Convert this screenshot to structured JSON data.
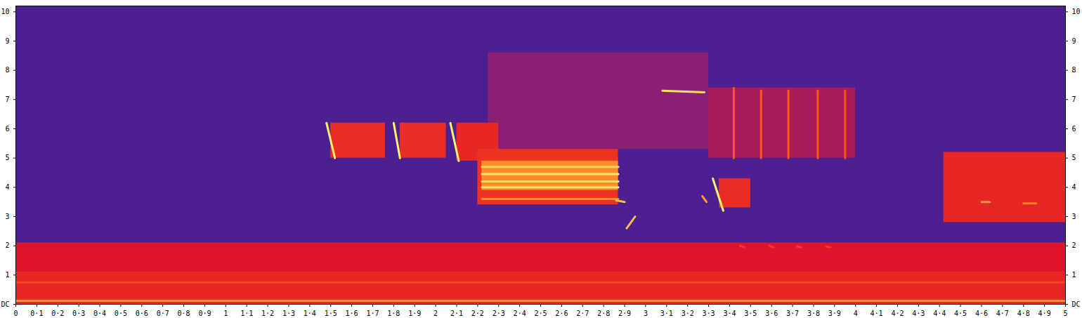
{
  "chart_data": {
    "type": "spectrogram",
    "xlim": [
      0,
      5
    ],
    "ylim": [
      0,
      10.2
    ],
    "zlim": [
      0,
      1
    ],
    "xticks": [
      0,
      {
        "value": 0.1,
        "label": "0·1"
      },
      {
        "value": 0.2,
        "label": "0·2"
      },
      {
        "value": 0.3,
        "label": "0·3"
      },
      {
        "value": 0.4,
        "label": "0·4"
      },
      {
        "value": 0.5,
        "label": "0·5"
      },
      {
        "value": 0.6,
        "label": "0·6"
      },
      {
        "value": 0.7,
        "label": "0·7"
      },
      {
        "value": 0.8,
        "label": "0·8"
      },
      {
        "value": 0.9,
        "label": "0·9"
      },
      1,
      {
        "value": 1.1,
        "label": "1·1"
      },
      {
        "value": 1.2,
        "label": "1·2"
      },
      {
        "value": 1.3,
        "label": "1·3"
      },
      {
        "value": 1.4,
        "label": "1·4"
      },
      {
        "value": 1.5,
        "label": "1·5"
      },
      {
        "value": 1.6,
        "label": "1·6"
      },
      {
        "value": 1.7,
        "label": "1·7"
      },
      {
        "value": 1.8,
        "label": "1·8"
      },
      {
        "value": 1.9,
        "label": "1·9"
      },
      2,
      {
        "value": 2.1,
        "label": "2·1"
      },
      {
        "value": 2.2,
        "label": "2·2"
      },
      {
        "value": 2.3,
        "label": "2·3"
      },
      {
        "value": 2.4,
        "label": "2·4"
      },
      {
        "value": 2.5,
        "label": "2·5"
      },
      {
        "value": 2.6,
        "label": "2·6"
      },
      {
        "value": 2.7,
        "label": "2·7"
      },
      {
        "value": 2.8,
        "label": "2·8"
      },
      {
        "value": 2.9,
        "label": "2·9"
      },
      3,
      {
        "value": 3.1,
        "label": "3·1"
      },
      {
        "value": 3.2,
        "label": "3·2"
      },
      {
        "value": 3.3,
        "label": "3·3"
      },
      {
        "value": 3.4,
        "label": "3·4"
      },
      {
        "value": 3.5,
        "label": "3·5"
      },
      {
        "value": 3.6,
        "label": "3·6"
      },
      {
        "value": 3.7,
        "label": "3·7"
      },
      {
        "value": 3.8,
        "label": "3·8"
      },
      {
        "value": 3.9,
        "label": "3·9"
      },
      4,
      {
        "value": 4.1,
        "label": "4·1"
      },
      {
        "value": 4.2,
        "label": "4·2"
      },
      {
        "value": 4.3,
        "label": "4·3"
      },
      {
        "value": 4.4,
        "label": "4·4"
      },
      {
        "value": 4.5,
        "label": "4·5"
      },
      {
        "value": 4.6,
        "label": "4·6"
      },
      {
        "value": 4.7,
        "label": "4·7"
      },
      {
        "value": 4.8,
        "label": "4·8"
      },
      {
        "value": 4.9,
        "label": "4·9"
      },
      5
    ],
    "yticks": [
      {
        "value": 0,
        "label": "DC"
      },
      1,
      2,
      3,
      4,
      5,
      6,
      7,
      8,
      9,
      10
    ],
    "areas": [
      {
        "x1": 0,
        "x2": 5,
        "y1": 0,
        "y2": 10.2,
        "intensity": 0.2
      },
      {
        "x1": 0,
        "x2": 5,
        "y1": 0,
        "y2": 2.1,
        "intensity": 0.5
      },
      {
        "x1": 0,
        "x2": 5,
        "y1": 0,
        "y2": 1.1,
        "intensity": 0.56
      },
      {
        "x1": 2.25,
        "x2": 3.3,
        "y1": 5.3,
        "y2": 8.6,
        "intensity": 0.34
      },
      {
        "x1": 1.5,
        "x2": 1.76,
        "y1": 5.0,
        "y2": 6.2,
        "intensity": 0.58
      },
      {
        "x1": 1.83,
        "x2": 2.05,
        "y1": 5.0,
        "y2": 6.2,
        "intensity": 0.58
      },
      {
        "x1": 2.1,
        "x2": 2.3,
        "y1": 4.9,
        "y2": 6.2,
        "intensity": 0.56
      },
      {
        "x1": 2.2,
        "x2": 2.87,
        "y1": 3.4,
        "y2": 5.3,
        "intensity": 0.6
      },
      {
        "x1": 2.22,
        "x2": 2.87,
        "y1": 3.9,
        "y2": 4.9,
        "intensity": 0.82
      },
      {
        "x1": 3.3,
        "x2": 4.0,
        "y1": 5.0,
        "y2": 7.4,
        "intensity": 0.4
      },
      {
        "x1": 3.35,
        "x2": 3.5,
        "y1": 3.3,
        "y2": 4.3,
        "intensity": 0.58
      },
      {
        "x1": 4.42,
        "x2": 5,
        "y1": 2.8,
        "y2": 5.2,
        "intensity": 0.56
      }
    ],
    "strokes": [
      {
        "x1": 0,
        "y1": 0.12,
        "x2": 5,
        "y2": 0.12,
        "intensity": 0.85
      },
      {
        "x1": 0,
        "y1": 0.75,
        "x2": 5,
        "y2": 0.75,
        "intensity": 0.66
      },
      {
        "x1": 1.48,
        "y1": 6.2,
        "x2": 1.52,
        "y2": 5.0,
        "intensity": 1
      },
      {
        "x1": 1.8,
        "y1": 6.2,
        "x2": 1.83,
        "y2": 5.0,
        "intensity": 1
      },
      {
        "x1": 2.07,
        "y1": 6.2,
        "x2": 2.11,
        "y2": 4.9,
        "intensity": 1
      },
      {
        "x1": 2.22,
        "y1": 4.0,
        "x2": 2.87,
        "y2": 4.0,
        "intensity": 0.98
      },
      {
        "x1": 2.22,
        "y1": 4.2,
        "x2": 2.87,
        "y2": 4.2,
        "intensity": 0.98
      },
      {
        "x1": 2.22,
        "y1": 4.45,
        "x2": 2.87,
        "y2": 4.45,
        "intensity": 0.98
      },
      {
        "x1": 2.22,
        "y1": 4.7,
        "x2": 2.87,
        "y2": 4.7,
        "intensity": 0.95
      },
      {
        "x1": 2.22,
        "y1": 3.6,
        "x2": 2.87,
        "y2": 3.6,
        "intensity": 0.82
      },
      {
        "x1": 2.86,
        "y1": 3.55,
        "x2": 2.9,
        "y2": 3.5,
        "intensity": 0.9
      },
      {
        "x1": 2.91,
        "y1": 2.6,
        "x2": 2.95,
        "y2": 3.0,
        "intensity": 0.9
      },
      {
        "x1": 3.08,
        "y1": 7.3,
        "x2": 3.28,
        "y2": 7.25,
        "intensity": 0.97
      },
      {
        "x1": 3.32,
        "y1": 4.3,
        "x2": 3.37,
        "y2": 3.2,
        "intensity": 1
      },
      {
        "x1": 3.27,
        "y1": 3.7,
        "x2": 3.29,
        "y2": 3.5,
        "intensity": 0.85
      },
      {
        "x1": 3.42,
        "y1": 5.0,
        "x2": 3.42,
        "y2": 7.4,
        "intensity": 0.72
      },
      {
        "x1": 3.55,
        "y1": 5.0,
        "x2": 3.55,
        "y2": 7.3,
        "intensity": 0.72
      },
      {
        "x1": 3.68,
        "y1": 5.0,
        "x2": 3.68,
        "y2": 7.3,
        "intensity": 0.72
      },
      {
        "x1": 3.82,
        "y1": 5.0,
        "x2": 3.82,
        "y2": 7.3,
        "intensity": 0.72
      },
      {
        "x1": 3.95,
        "y1": 5.0,
        "x2": 3.95,
        "y2": 7.3,
        "intensity": 0.7
      },
      {
        "x1": 3.45,
        "y1": 2.0,
        "x2": 3.47,
        "y2": 1.95,
        "intensity": 0.62
      },
      {
        "x1": 3.59,
        "y1": 2.0,
        "x2": 3.61,
        "y2": 1.95,
        "intensity": 0.62
      },
      {
        "x1": 3.72,
        "y1": 1.98,
        "x2": 3.74,
        "y2": 1.95,
        "intensity": 0.62
      },
      {
        "x1": 3.86,
        "y1": 1.98,
        "x2": 3.88,
        "y2": 1.95,
        "intensity": 0.62
      },
      {
        "x1": 4.6,
        "y1": 3.5,
        "x2": 4.64,
        "y2": 3.5,
        "intensity": 0.85
      },
      {
        "x1": 4.8,
        "y1": 3.45,
        "x2": 4.86,
        "y2": 3.45,
        "intensity": 0.8
      }
    ]
  }
}
